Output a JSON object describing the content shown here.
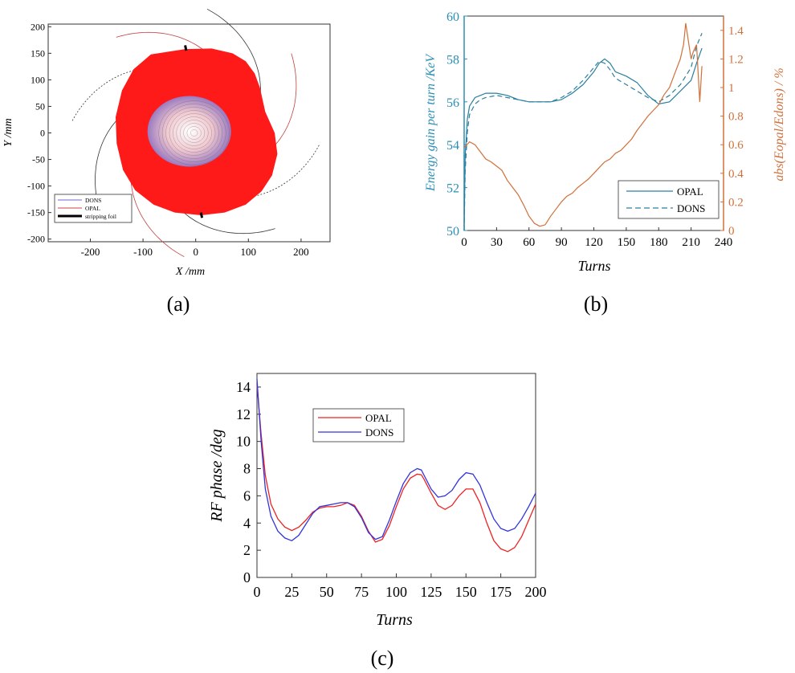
{
  "panel_labels": [
    "(a)",
    "(b)",
    "(c)"
  ],
  "colors": {
    "beam_red": "#ff1a1a",
    "dons_blue": "#6a6ad0",
    "opal_red": "#d04040",
    "energy_blue": "#2a7fa0",
    "ratio_orange": "#d0703a",
    "rf_red": "#ee2222",
    "rf_blue": "#3333dd"
  },
  "chart_data": [
    {
      "id": "a",
      "type": "scatter",
      "title": "",
      "xlabel": "X /mm",
      "ylabel": "Y /mm",
      "xlim": [
        -280,
        255
      ],
      "ylim": [
        -205,
        205
      ],
      "xticks": [
        -200,
        -100,
        0,
        100,
        200
      ],
      "yticks": [
        -200,
        -150,
        -100,
        -50,
        0,
        50,
        100,
        150,
        200
      ],
      "grid": false,
      "legend_position": "bottom-left",
      "series": [
        {
          "name": "DONS",
          "color": "#6a6ad0"
        },
        {
          "name": "OPAL",
          "color": "#d04040"
        },
        {
          "name": "stripping foil",
          "color": "#000000"
        }
      ],
      "beam_outline_mm": [
        [
          -85,
          148
        ],
        [
          -20,
          158
        ],
        [
          30,
          159
        ],
        [
          70,
          150
        ],
        [
          95,
          135
        ],
        [
          112,
          112
        ],
        [
          122,
          85
        ],
        [
          132,
          40
        ],
        [
          150,
          0
        ],
        [
          155,
          -40
        ],
        [
          145,
          -80
        ],
        [
          125,
          -110
        ],
        [
          95,
          -135
        ],
        [
          55,
          -150
        ],
        [
          10,
          -155
        ],
        [
          -40,
          -150
        ],
        [
          -80,
          -135
        ],
        [
          -115,
          -108
        ],
        [
          -138,
          -70
        ],
        [
          -150,
          -20
        ],
        [
          -152,
          30
        ],
        [
          -140,
          80
        ],
        [
          -118,
          120
        ]
      ],
      "foil_segments_mm": [
        [
          [
            -20,
            165
          ],
          [
            -18,
            155
          ]
        ],
        [
          [
            10,
            -150
          ],
          [
            12,
            -160
          ]
        ]
      ]
    },
    {
      "id": "b",
      "type": "line",
      "title": "",
      "xlabel": "Turns",
      "ylabel_left": "Energy gain per turn /KeV",
      "ylabel_right": "abs(Eopal/Edons) / %",
      "xlim": [
        0,
        240
      ],
      "ylim_left": [
        50,
        60
      ],
      "ylim_right": [
        0,
        1.5
      ],
      "xticks": [
        0,
        30,
        60,
        90,
        120,
        150,
        180,
        210,
        240
      ],
      "yticks_left": [
        50,
        52,
        54,
        56,
        58,
        60
      ],
      "yticks_right": [
        0,
        0.2,
        0.4,
        0.6,
        0.8,
        1,
        1.2,
        1.4
      ],
      "grid": false,
      "legend_position": "bottom-right",
      "series": [
        {
          "name": "OPAL",
          "axis": "left",
          "style": "solid",
          "x": [
            0,
            1,
            3,
            5,
            10,
            15,
            20,
            30,
            40,
            50,
            60,
            70,
            80,
            90,
            100,
            110,
            120,
            125,
            130,
            135,
            140,
            150,
            160,
            170,
            180,
            190,
            200,
            210,
            215,
            220
          ],
          "y": [
            50.2,
            53.5,
            55.2,
            55.8,
            56.2,
            56.3,
            56.4,
            56.4,
            56.3,
            56.1,
            56.0,
            56.0,
            56.0,
            56.1,
            56.4,
            56.8,
            57.4,
            57.8,
            58.0,
            57.8,
            57.4,
            57.2,
            56.9,
            56.3,
            55.9,
            56.0,
            56.5,
            57.0,
            57.8,
            58.5
          ]
        },
        {
          "name": "DONS",
          "axis": "left",
          "style": "dashed",
          "x": [
            0,
            1,
            3,
            5,
            10,
            15,
            20,
            30,
            40,
            50,
            60,
            70,
            80,
            90,
            100,
            110,
            120,
            125,
            130,
            135,
            140,
            150,
            160,
            170,
            180,
            190,
            200,
            210,
            215,
            220
          ],
          "y": [
            50.0,
            52.8,
            54.6,
            55.4,
            55.9,
            56.1,
            56.2,
            56.3,
            56.2,
            56.1,
            56.0,
            56.0,
            56.0,
            56.2,
            56.5,
            57.0,
            57.6,
            57.9,
            57.8,
            57.5,
            57.1,
            56.8,
            56.5,
            56.2,
            56.0,
            56.3,
            56.8,
            57.6,
            58.6,
            59.2
          ]
        },
        {
          "name": "",
          "axis": "right",
          "style": "solid",
          "x": [
            0,
            5,
            10,
            15,
            20,
            25,
            30,
            35,
            40,
            45,
            50,
            55,
            60,
            65,
            70,
            75,
            80,
            85,
            90,
            95,
            100,
            105,
            110,
            115,
            120,
            125,
            130,
            135,
            140,
            145,
            150,
            155,
            160,
            165,
            170,
            175,
            180,
            185,
            190,
            195,
            200,
            203,
            205,
            208,
            210,
            212,
            215,
            218,
            220
          ],
          "y": [
            0.58,
            0.62,
            0.6,
            0.55,
            0.5,
            0.48,
            0.45,
            0.42,
            0.35,
            0.3,
            0.25,
            0.18,
            0.1,
            0.05,
            0.03,
            0.04,
            0.1,
            0.15,
            0.2,
            0.24,
            0.26,
            0.3,
            0.33,
            0.36,
            0.4,
            0.44,
            0.48,
            0.5,
            0.54,
            0.56,
            0.6,
            0.64,
            0.7,
            0.75,
            0.8,
            0.84,
            0.88,
            0.95,
            1.0,
            1.1,
            1.2,
            1.3,
            1.45,
            1.3,
            1.2,
            1.25,
            1.3,
            0.9,
            1.15
          ]
        }
      ]
    },
    {
      "id": "c",
      "type": "line",
      "title": "",
      "xlabel": "Turns",
      "ylabel": "RF phase /deg",
      "xlim": [
        0,
        200
      ],
      "ylim": [
        0,
        15
      ],
      "xticks": [
        0,
        25,
        50,
        75,
        100,
        125,
        150,
        175,
        200
      ],
      "yticks": [
        0,
        2,
        4,
        6,
        8,
        10,
        12,
        14
      ],
      "grid": false,
      "legend_position": "top-left",
      "series": [
        {
          "name": "OPAL",
          "color": "#ee2222",
          "x": [
            0,
            3,
            6,
            10,
            15,
            20,
            25,
            30,
            35,
            40,
            45,
            50,
            55,
            60,
            65,
            70,
            75,
            80,
            85,
            90,
            95,
            100,
            105,
            110,
            115,
            118,
            120,
            125,
            130,
            135,
            140,
            145,
            150,
            155,
            160,
            165,
            170,
            175,
            180,
            185,
            190,
            195,
            200
          ],
          "y": [
            14.2,
            10.5,
            7.5,
            5.4,
            4.3,
            3.7,
            3.45,
            3.7,
            4.2,
            4.8,
            5.1,
            5.2,
            5.2,
            5.3,
            5.5,
            5.3,
            4.5,
            3.4,
            2.6,
            2.8,
            3.8,
            5.2,
            6.5,
            7.3,
            7.6,
            7.55,
            7.2,
            6.2,
            5.3,
            5.0,
            5.3,
            6.0,
            6.5,
            6.5,
            5.5,
            4.0,
            2.7,
            2.1,
            1.9,
            2.2,
            3.0,
            4.2,
            5.4
          ]
        },
        {
          "name": "DONS",
          "color": "#3333dd",
          "x": [
            0,
            3,
            6,
            10,
            15,
            20,
            25,
            30,
            35,
            40,
            45,
            50,
            55,
            60,
            65,
            70,
            75,
            80,
            85,
            90,
            95,
            100,
            105,
            110,
            115,
            118,
            120,
            125,
            130,
            135,
            140,
            145,
            150,
            155,
            160,
            165,
            170,
            175,
            180,
            185,
            190,
            195,
            200
          ],
          "y": [
            14.6,
            10.0,
            6.5,
            4.5,
            3.4,
            2.9,
            2.7,
            3.1,
            3.9,
            4.7,
            5.2,
            5.3,
            5.4,
            5.5,
            5.5,
            5.2,
            4.4,
            3.3,
            2.8,
            3.0,
            4.2,
            5.6,
            6.9,
            7.7,
            8.0,
            7.9,
            7.5,
            6.5,
            5.9,
            6.0,
            6.4,
            7.2,
            7.7,
            7.6,
            6.8,
            5.5,
            4.3,
            3.6,
            3.4,
            3.6,
            4.3,
            5.2,
            6.2
          ]
        }
      ]
    }
  ]
}
